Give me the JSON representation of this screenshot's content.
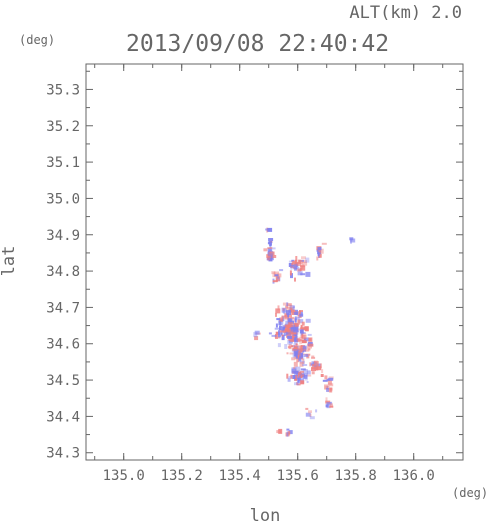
{
  "header": {
    "altitude_label": "ALT(km) 2.0",
    "timestamp": "2013/09/08 22:40:42",
    "y_unit": "(deg)",
    "x_unit": "(deg)"
  },
  "chart_data": {
    "type": "heatmap",
    "title": "2013/09/08 22:40:42",
    "subtitle": "ALT(km) 2.0",
    "xlabel": "lon",
    "ylabel": "lat",
    "xlim": [
      134.87,
      136.17
    ],
    "ylim": [
      34.28,
      35.37
    ],
    "x_ticks": [
      "135.0",
      "135.2",
      "135.4",
      "135.6",
      "135.8",
      "136.0"
    ],
    "y_ticks": [
      "34.3",
      "34.4",
      "34.5",
      "34.6",
      "34.7",
      "34.8",
      "34.9",
      "35.0",
      "35.1",
      "35.2",
      "35.3"
    ],
    "grid": false,
    "colors": {
      "positive": "#f08080",
      "negative": "#8080f0",
      "axis": "#666666"
    },
    "clusters": [
      {
        "lon": 135.5,
        "lat": 34.86,
        "dlon": 0.015,
        "dlat": 0.025,
        "n": 28
      },
      {
        "lon": 135.52,
        "lat": 34.79,
        "dlon": 0.015,
        "dlat": 0.015,
        "n": 14
      },
      {
        "lon": 135.49,
        "lat": 34.92,
        "dlon": 0.006,
        "dlat": 0.006,
        "n": 4
      },
      {
        "lon": 135.59,
        "lat": 34.82,
        "dlon": 0.03,
        "dlat": 0.025,
        "n": 40
      },
      {
        "lon": 135.67,
        "lat": 34.86,
        "dlon": 0.012,
        "dlat": 0.018,
        "n": 12
      },
      {
        "lon": 135.78,
        "lat": 34.89,
        "dlon": 0.004,
        "dlat": 0.005,
        "n": 3
      },
      {
        "lon": 135.57,
        "lat": 34.69,
        "dlon": 0.035,
        "dlat": 0.025,
        "n": 45
      },
      {
        "lon": 135.57,
        "lat": 34.64,
        "dlon": 0.05,
        "dlat": 0.035,
        "n": 160
      },
      {
        "lon": 135.6,
        "lat": 34.58,
        "dlon": 0.035,
        "dlat": 0.03,
        "n": 70
      },
      {
        "lon": 135.6,
        "lat": 34.52,
        "dlon": 0.03,
        "dlat": 0.025,
        "n": 50
      },
      {
        "lon": 135.66,
        "lat": 34.55,
        "dlon": 0.02,
        "dlat": 0.025,
        "n": 20
      },
      {
        "lon": 135.7,
        "lat": 34.49,
        "dlon": 0.012,
        "dlat": 0.02,
        "n": 14
      },
      {
        "lon": 135.7,
        "lat": 34.44,
        "dlon": 0.01,
        "dlat": 0.015,
        "n": 8
      },
      {
        "lon": 135.56,
        "lat": 34.36,
        "dlon": 0.03,
        "dlat": 0.01,
        "n": 8
      },
      {
        "lon": 135.64,
        "lat": 34.41,
        "dlon": 0.015,
        "dlat": 0.015,
        "n": 6
      },
      {
        "lon": 135.45,
        "lat": 34.63,
        "dlon": 0.01,
        "dlat": 0.01,
        "n": 4
      }
    ]
  }
}
